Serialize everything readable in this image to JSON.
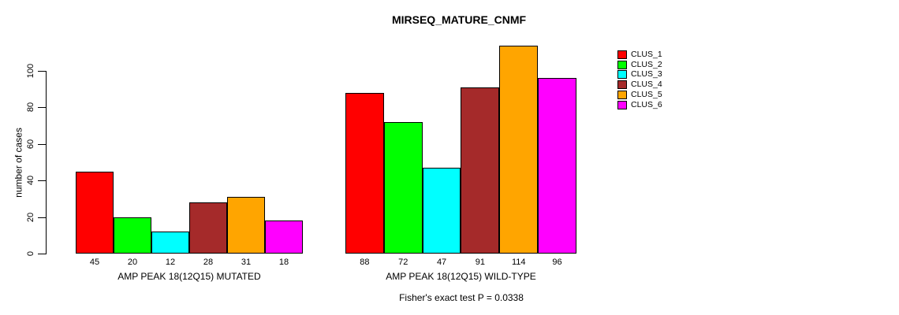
{
  "title": "MIRSEQ_MATURE_CNMF",
  "footer": "Fisher's exact test P = 0.0338",
  "chart_data": {
    "type": "bar",
    "title": "MIRSEQ_MATURE_CNMF",
    "xlabel": "",
    "ylabel": "number of cases",
    "yticks": [
      0,
      20,
      40,
      60,
      80,
      100
    ],
    "ylim": [
      0,
      116
    ],
    "grid": false,
    "legend_position": "right",
    "bar_value_labels": true,
    "annotation": "Fisher's exact test P = 0.0338",
    "series": [
      {
        "name": "CLUS_1",
        "color": "#FF0000"
      },
      {
        "name": "CLUS_2",
        "color": "#00FF00"
      },
      {
        "name": "CLUS_3",
        "color": "#00FFFF"
      },
      {
        "name": "CLUS_4",
        "color": "#A52A2A"
      },
      {
        "name": "CLUS_5",
        "color": "#FFA500"
      },
      {
        "name": "CLUS_6",
        "color": "#FF00FF"
      }
    ],
    "groups": [
      {
        "label": "AMP PEAK 18(12Q15) MUTATED",
        "values": [
          45,
          20,
          12,
          28,
          31,
          18
        ]
      },
      {
        "label": "AMP PEAK 18(12Q15) WILD-TYPE",
        "values": [
          88,
          72,
          47,
          91,
          114,
          96
        ]
      }
    ]
  }
}
